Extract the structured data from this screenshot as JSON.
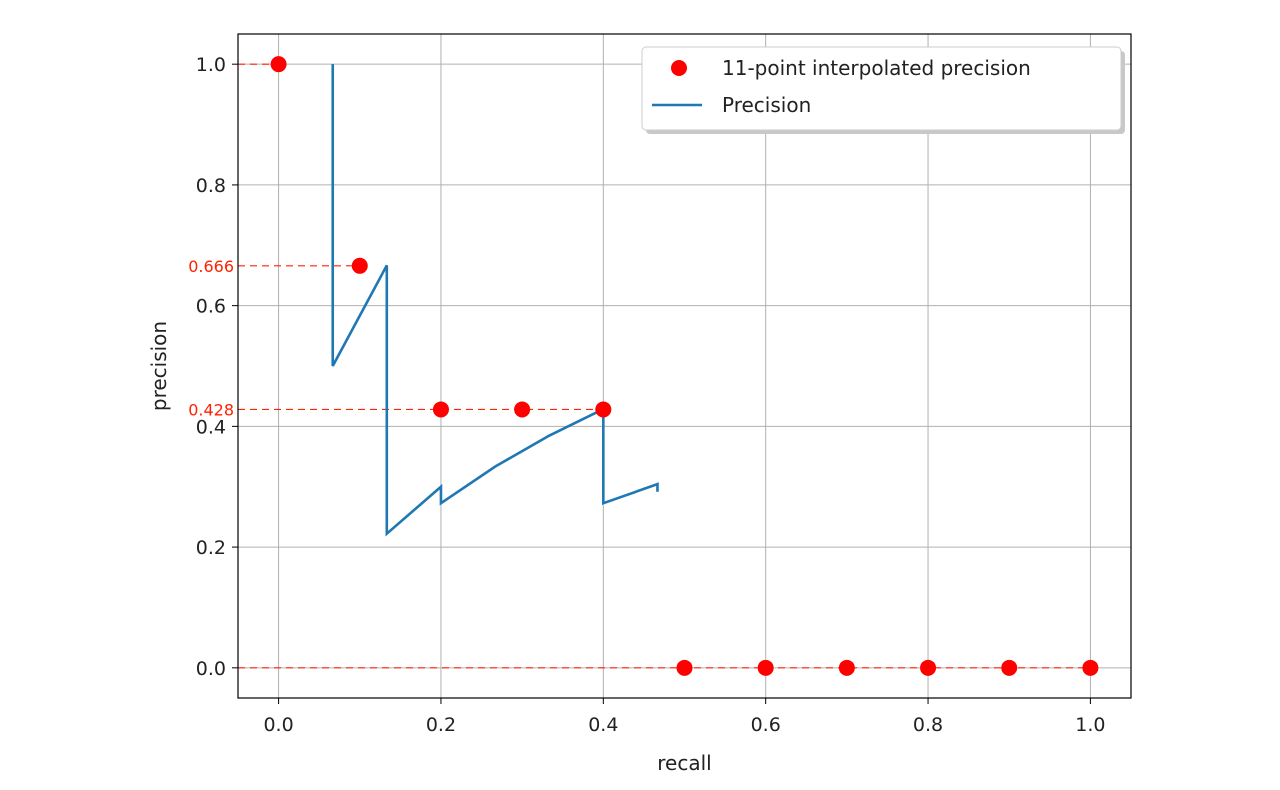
{
  "chart_data": {
    "type": "line",
    "xlabel": "recall",
    "ylabel": "precision",
    "xlim": [
      -0.05,
      1.05
    ],
    "ylim": [
      -0.05,
      1.05
    ],
    "xticks": [
      0.0,
      0.2,
      0.4,
      0.6,
      0.8,
      1.0
    ],
    "xtick_labels": [
      "0.0",
      "0.2",
      "0.4",
      "0.6",
      "0.8",
      "1.0"
    ],
    "yticks": [
      0.0,
      0.2,
      0.4,
      0.6,
      0.8,
      1.0
    ],
    "ytick_labels": [
      "0.0",
      "0.2",
      "0.4",
      "0.6",
      "0.8",
      "1.0"
    ],
    "grid": true,
    "legend_position": "top-right",
    "series": [
      {
        "name": "11-point interpolated precision",
        "kind": "scatter",
        "color": "#ff0000",
        "x": [
          0.0,
          0.1,
          0.2,
          0.3,
          0.4,
          0.5,
          0.6,
          0.7,
          0.8,
          0.9,
          1.0
        ],
        "y": [
          1.0,
          0.666,
          0.428,
          0.428,
          0.428,
          0.0,
          0.0,
          0.0,
          0.0,
          0.0,
          0.0
        ]
      },
      {
        "name": "Precision",
        "kind": "line",
        "color": "#1f77b4",
        "x": [
          0.0667,
          0.0667,
          0.0667,
          0.1333,
          0.1333,
          0.1333,
          0.2,
          0.2,
          0.2667,
          0.3333,
          0.4,
          0.4,
          0.4667,
          0.4667
        ],
        "y": [
          1.0,
          0.5,
          0.5,
          0.6667,
          0.6667,
          0.2222,
          0.3,
          0.2727,
          0.3333,
          0.3846,
          0.4286,
          0.2727,
          0.3043,
          0.2917
        ]
      }
    ],
    "annotations": [
      {
        "text": "",
        "y": 1.0,
        "x_end": 0.0
      },
      {
        "text": "0.666",
        "y": 0.666,
        "x_end": 0.1
      },
      {
        "text": "0.428",
        "y": 0.428,
        "x_end": 0.4
      },
      {
        "text": "",
        "y": 0.0,
        "x_end": 1.0
      }
    ],
    "annotation_color": "#ff2200"
  }
}
